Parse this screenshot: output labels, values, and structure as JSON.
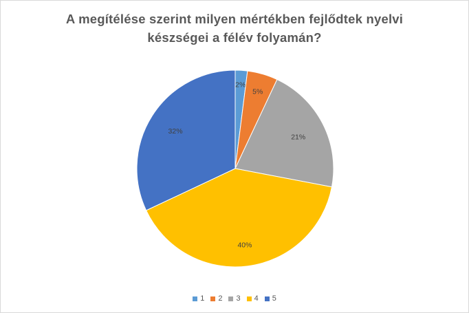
{
  "chart_data": {
    "type": "pie",
    "title_lines": [
      "A megítélése szerint milyen mértékben fejlődtek nyelvi",
      "készségei a félév folyamán?"
    ],
    "categories": [
      "1",
      "2",
      "3",
      "4",
      "5"
    ],
    "values": [
      2,
      5,
      21,
      40,
      32
    ],
    "labels": [
      "2%",
      "5%",
      "21%",
      "40%",
      "32%"
    ],
    "colors": [
      "#5b9bd5",
      "#ed7d31",
      "#a5a5a5",
      "#ffc000",
      "#4472c4"
    ],
    "legend_position": "bottom"
  }
}
